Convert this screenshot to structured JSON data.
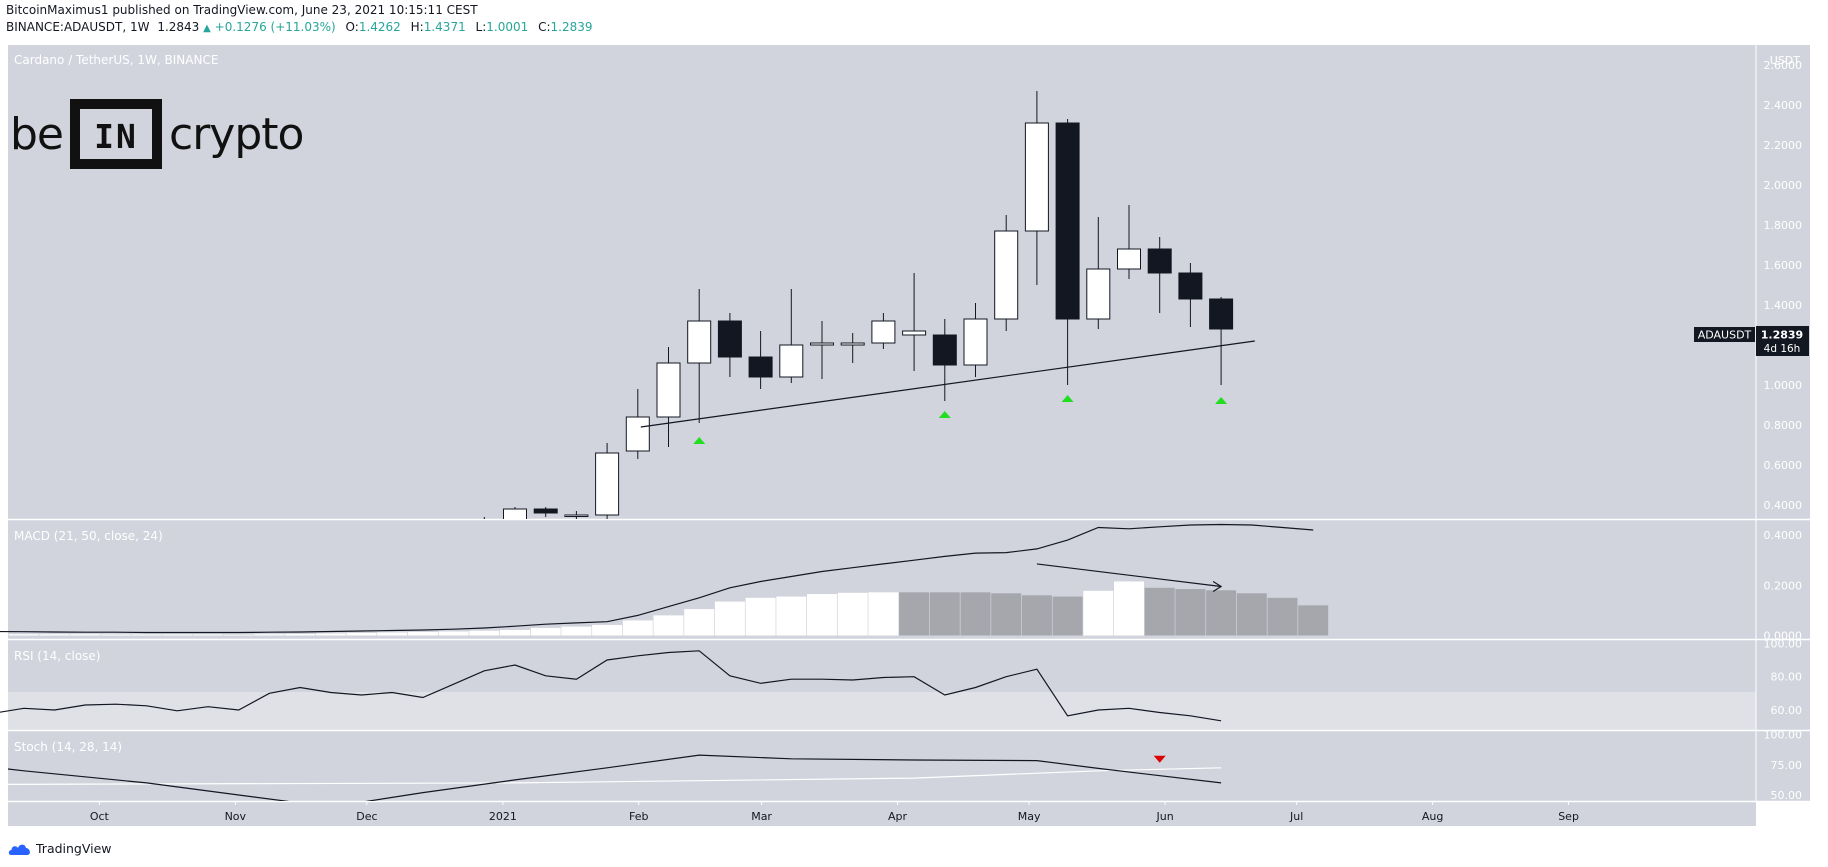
{
  "header": {
    "publisher": "BitcoinMaximus1",
    "published_text": "published on TradingView.com, June 23, 2021 10:15:11 CEST",
    "symbol": "BINANCE:ADAUSDT, 1W",
    "last": "1.2843",
    "change": "+0.1276 (+11.03%)",
    "o_label": "O:",
    "o": "1.4262",
    "h_label": "H:",
    "h": "1.4371",
    "l_label": "L:",
    "l": "1.0001",
    "c_label": "C:",
    "c": "1.2839"
  },
  "logo": {
    "left": "be",
    "box": "IN",
    "right": "crypto",
    "box_icon": "bracket-icon"
  },
  "footer": {
    "brand": "TradingView",
    "icon": "tradingview-cloud-icon"
  },
  "colors": {
    "background": "#d1d4dc",
    "scale_background": "#ffffff",
    "bull": "#ffffff",
    "bear": "#131722",
    "hist_dark": "#a5a7ad",
    "marker_green": "#22dd22",
    "marker_red": "#dd0000",
    "rsi_band": "#dfe1e7"
  },
  "chart_data": [
    {
      "id": "price",
      "type": "candlestick",
      "title": "Cardano / TetherUS, 1W, BINANCE",
      "y_unit": "USDT",
      "ylim": [
        0.33,
        2.7
      ],
      "yticks": [
        "2.6000",
        "2.4000",
        "2.2000",
        "2.0000",
        "1.8000",
        "1.6000",
        "1.4000",
        "1.2000",
        "1.0000",
        "0.8000",
        "0.6000",
        "0.4000"
      ],
      "price_label": {
        "symbol": "ADAUSDT",
        "value": "1.2839",
        "timer": "4d 16h"
      },
      "xticks": [
        "Sep",
        "Oct",
        "Nov",
        "Dec",
        "2021",
        "Feb",
        "Mar",
        "Apr",
        "May",
        "Jun",
        "Jul",
        "Aug",
        "Sep"
      ],
      "candles": [
        {
          "week": "2020-12-28",
          "o": 0.3,
          "h": 0.34,
          "l": 0.28,
          "c": 0.3
        },
        {
          "week": "2021-01-04",
          "o": 0.32,
          "h": 0.39,
          "l": 0.3,
          "c": 0.38
        },
        {
          "week": "2021-01-11",
          "o": 0.38,
          "h": 0.39,
          "l": 0.34,
          "c": 0.36
        },
        {
          "week": "2021-01-18",
          "o": 0.35,
          "h": 0.37,
          "l": 0.32,
          "c": 0.35
        },
        {
          "week": "2021-01-25",
          "o": 0.35,
          "h": 0.71,
          "l": 0.33,
          "c": 0.66
        },
        {
          "week": "2021-02-01",
          "o": 0.67,
          "h": 0.98,
          "l": 0.63,
          "c": 0.84
        },
        {
          "week": "2021-02-08",
          "o": 0.84,
          "h": 1.19,
          "l": 0.69,
          "c": 1.11
        },
        {
          "week": "2021-02-15",
          "o": 1.11,
          "h": 1.48,
          "l": 0.81,
          "c": 1.32
        },
        {
          "week": "2021-02-22",
          "o": 1.32,
          "h": 1.36,
          "l": 1.04,
          "c": 1.14
        },
        {
          "week": "2021-03-01",
          "o": 1.14,
          "h": 1.27,
          "l": 0.98,
          "c": 1.04
        },
        {
          "week": "2021-03-08",
          "o": 1.04,
          "h": 1.48,
          "l": 1.01,
          "c": 1.2
        },
        {
          "week": "2021-03-15",
          "o": 1.2,
          "h": 1.32,
          "l": 1.03,
          "c": 1.21
        },
        {
          "week": "2021-03-22",
          "o": 1.2,
          "h": 1.26,
          "l": 1.11,
          "c": 1.21
        },
        {
          "week": "2021-03-29",
          "o": 1.21,
          "h": 1.36,
          "l": 1.18,
          "c": 1.32
        },
        {
          "week": "2021-04-05",
          "o": 1.25,
          "h": 1.56,
          "l": 1.07,
          "c": 1.27
        },
        {
          "week": "2021-04-12",
          "o": 1.25,
          "h": 1.33,
          "l": 0.92,
          "c": 1.1
        },
        {
          "week": "2021-04-19",
          "o": 1.1,
          "h": 1.41,
          "l": 1.04,
          "c": 1.33
        },
        {
          "week": "2021-04-26",
          "o": 1.33,
          "h": 1.85,
          "l": 1.27,
          "c": 1.77
        },
        {
          "week": "2021-05-03",
          "o": 1.77,
          "h": 2.47,
          "l": 1.5,
          "c": 2.31
        },
        {
          "week": "2021-05-10",
          "o": 2.31,
          "h": 2.33,
          "l": 1.0,
          "c": 1.33
        },
        {
          "week": "2021-05-17",
          "o": 1.33,
          "h": 1.84,
          "l": 1.28,
          "c": 1.58
        },
        {
          "week": "2021-05-24",
          "o": 1.58,
          "h": 1.9,
          "l": 1.53,
          "c": 1.68
        },
        {
          "week": "2021-05-31",
          "o": 1.68,
          "h": 1.74,
          "l": 1.36,
          "c": 1.56
        },
        {
          "week": "2021-06-07",
          "o": 1.56,
          "h": 1.61,
          "l": 1.29,
          "c": 1.43
        },
        {
          "week": "2021-06-14",
          "o": 1.43,
          "h": 1.44,
          "l": 1.0,
          "c": 1.28
        }
      ],
      "trendline": [
        {
          "week": "2021-02-01",
          "value": 0.79
        },
        {
          "week": "2021-06-21",
          "value": 1.22
        }
      ],
      "markers": [
        {
          "week": "2021-02-15",
          "value": 0.72,
          "color": "green",
          "shape": "triangle-up"
        },
        {
          "week": "2021-04-12",
          "value": 0.85,
          "color": "green",
          "shape": "triangle-up"
        },
        {
          "week": "2021-05-10",
          "value": 0.93,
          "color": "green",
          "shape": "triangle-up"
        },
        {
          "week": "2021-06-14",
          "value": 0.92,
          "color": "green",
          "shape": "triangle-up"
        }
      ]
    },
    {
      "id": "macd",
      "type": "bar+line",
      "title": "MACD (21, 50, close, 24)",
      "ylim": [
        -0.01,
        0.46
      ],
      "yticks": [
        "0.4000",
        "0.2000",
        "0.0000"
      ],
      "series_weeks_start": "2020-08-24",
      "macd": [
        0.018,
        0.017,
        0.016,
        0.015,
        0.014,
        0.013,
        0.013,
        0.012,
        0.012,
        0.012,
        0.012,
        0.013,
        0.014,
        0.016,
        0.018,
        0.02,
        0.022,
        0.025,
        0.03,
        0.037,
        0.045,
        0.05,
        0.055,
        0.08,
        0.115,
        0.15,
        0.19,
        0.215,
        0.235,
        0.255,
        0.27,
        0.285,
        0.3,
        0.315,
        0.328,
        0.33,
        0.345,
        0.38,
        0.43,
        0.425,
        0.433,
        0.44,
        0.442,
        0.44,
        0.43,
        0.42
      ],
      "histogram": [
        0.005,
        0.005,
        0.005,
        0.005,
        0.005,
        0.005,
        0.004,
        0.004,
        0.004,
        0.004,
        0.003,
        0.005,
        0.006,
        0.008,
        0.01,
        0.012,
        0.014,
        0.016,
        0.019,
        0.022,
        0.03,
        0.035,
        0.042,
        0.06,
        0.08,
        0.105,
        0.135,
        0.15,
        0.155,
        0.165,
        0.17,
        0.172,
        0.172,
        0.172,
        0.172,
        0.168,
        0.16,
        0.155,
        0.178,
        0.215,
        0.19,
        0.185,
        0.18,
        0.168,
        0.15,
        0.12
      ],
      "arrow": [
        {
          "week": "2021-05-03",
          "value": 0.285
        },
        {
          "week": "2021-06-14",
          "value": 0.195
        }
      ]
    },
    {
      "id": "rsi",
      "type": "line",
      "title": "RSI (14, close)",
      "ylim": [
        48,
        102
      ],
      "yticks": [
        "100.00",
        "80.00",
        "60.00"
      ],
      "band": [
        70,
        30
      ],
      "points": [
        {
          "week": "2020-08-24",
          "value": 58.5
        },
        {
          "week": "2020-08-31",
          "value": 59.5
        },
        {
          "week": "2020-09-07",
          "value": 58.0
        },
        {
          "week": "2020-09-14",
          "value": 61.0
        },
        {
          "week": "2020-09-21",
          "value": 60.0
        },
        {
          "week": "2020-09-28",
          "value": 63.0
        },
        {
          "week": "2020-10-05",
          "value": 63.5
        },
        {
          "week": "2020-10-12",
          "value": 62.5
        },
        {
          "week": "2020-10-19",
          "value": 59.5
        },
        {
          "week": "2020-10-26",
          "value": 62.0
        },
        {
          "week": "2020-11-02",
          "value": 60.0
        },
        {
          "week": "2020-11-09",
          "value": 70.0
        },
        {
          "week": "2020-11-16",
          "value": 73.5
        },
        {
          "week": "2020-11-23",
          "value": 70.5
        },
        {
          "week": "2020-11-30",
          "value": 69.0
        },
        {
          "week": "2020-12-07",
          "value": 70.5
        },
        {
          "week": "2020-12-14",
          "value": 67.5
        },
        {
          "week": "2020-12-21",
          "value": 75.5
        },
        {
          "week": "2020-12-28",
          "value": 83.5
        },
        {
          "week": "2021-01-04",
          "value": 87.0
        },
        {
          "week": "2021-01-11",
          "value": 80.5
        },
        {
          "week": "2021-01-18",
          "value": 78.5
        },
        {
          "week": "2021-01-25",
          "value": 90.0
        },
        {
          "week": "2021-02-01",
          "value": 92.5
        },
        {
          "week": "2021-02-08",
          "value": 94.5
        },
        {
          "week": "2021-02-15",
          "value": 95.5
        },
        {
          "week": "2021-02-22",
          "value": 80.5
        },
        {
          "week": "2021-03-01",
          "value": 76.0
        },
        {
          "week": "2021-03-08",
          "value": 78.5
        },
        {
          "week": "2021-03-15",
          "value": 78.5
        },
        {
          "week": "2021-03-22",
          "value": 78.0
        },
        {
          "week": "2021-03-29",
          "value": 79.5
        },
        {
          "week": "2021-04-05",
          "value": 80.0
        },
        {
          "week": "2021-04-12",
          "value": 69.0
        },
        {
          "week": "2021-04-19",
          "value": 73.5
        },
        {
          "week": "2021-04-26",
          "value": 80.0
        },
        {
          "week": "2021-05-03",
          "value": 84.5
        },
        {
          "week": "2021-05-10",
          "value": 56.5
        },
        {
          "week": "2021-05-17",
          "value": 60.0
        },
        {
          "week": "2021-05-24",
          "value": 61.0
        },
        {
          "week": "2021-05-31",
          "value": 58.5
        },
        {
          "week": "2021-06-07",
          "value": 56.5
        },
        {
          "week": "2021-06-14",
          "value": 53.5
        }
      ]
    },
    {
      "id": "stoch",
      "type": "line",
      "title": "Stoch (14, 28, 14)",
      "ylim": [
        45,
        103
      ],
      "yticks": [
        "100.00",
        "75.00",
        "50.00"
      ],
      "k_line": [
        {
          "week": "2020-08-17",
          "value": 81.5
        },
        {
          "week": "2020-09-14",
          "value": 70.0
        },
        {
          "week": "2020-10-12",
          "value": 60.0
        },
        {
          "week": "2020-11-02",
          "value": 50.0
        },
        {
          "week": "2020-11-23",
          "value": 40.0
        },
        {
          "week": "2020-12-14",
          "value": 52.0
        },
        {
          "week": "2021-01-04",
          "value": 62.5
        },
        {
          "week": "2021-01-25",
          "value": 72.5
        },
        {
          "week": "2021-02-15",
          "value": 83.0
        },
        {
          "week": "2021-03-08",
          "value": 80.0
        },
        {
          "week": "2021-04-05",
          "value": 79.0
        },
        {
          "week": "2021-05-03",
          "value": 78.5
        },
        {
          "week": "2021-05-17",
          "value": 72.0
        },
        {
          "week": "2021-06-14",
          "value": 60.0
        }
      ],
      "d_line": [
        {
          "week": "2020-08-17",
          "value": 58.5
        },
        {
          "week": "2021-01-04",
          "value": 60.0
        },
        {
          "week": "2021-04-05",
          "value": 64.0
        },
        {
          "week": "2021-05-17",
          "value": 70.0
        },
        {
          "week": "2021-06-14",
          "value": 72.5
        }
      ],
      "marker": {
        "week": "2021-05-31",
        "value": 80.0,
        "color": "red",
        "shape": "triangle-down"
      }
    }
  ]
}
